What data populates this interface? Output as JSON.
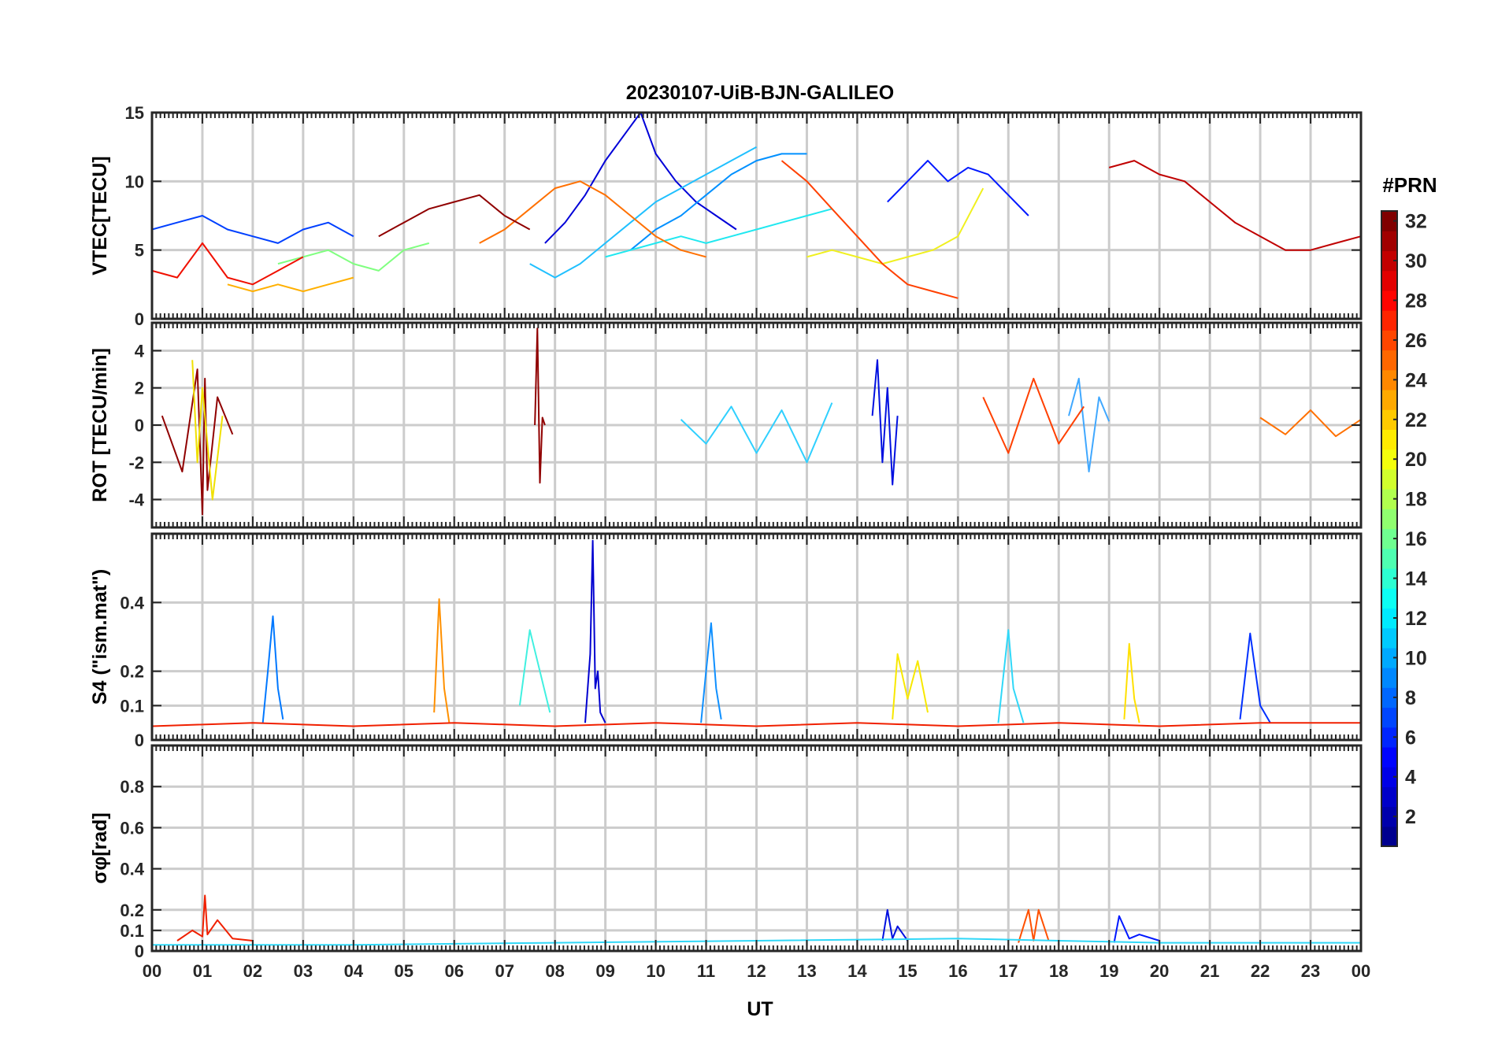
{
  "title": "20230107-UiB-BJN-GALILEO",
  "xlabel": "UT",
  "x_ticks": [
    "00",
    "01",
    "02",
    "03",
    "04",
    "05",
    "06",
    "07",
    "08",
    "09",
    "10",
    "11",
    "12",
    "13",
    "14",
    "15",
    "16",
    "17",
    "18",
    "19",
    "20",
    "21",
    "22",
    "23",
    "00"
  ],
  "colorbar": {
    "label": "#PRN",
    "range": [
      1,
      32
    ],
    "ticks": [
      "32",
      "30",
      "28",
      "26",
      "24",
      "22",
      "20",
      "18",
      "16",
      "14",
      "12",
      "10",
      "8",
      "6",
      "4",
      "2"
    ],
    "colormap": [
      "#00008f",
      "#0000ff",
      "#0080ff",
      "#00ffff",
      "#80ff80",
      "#ffff00",
      "#ff8000",
      "#ff0000",
      "#800000"
    ]
  },
  "chart_data": [
    {
      "type": "line",
      "panel": "vtec",
      "ylabel": "VTEC[TECU]",
      "ylim": [
        0,
        15
      ],
      "y_ticks": [
        "0",
        "5",
        "10",
        "15"
      ],
      "x_range_hours": [
        0,
        24
      ],
      "grid": true,
      "series": [
        {
          "prn": 2,
          "color": "#0000d8",
          "x": [
            7.8,
            8.2,
            8.6,
            9.0,
            9.4,
            9.7,
            10.0,
            10.4,
            10.8,
            11.2,
            11.6
          ],
          "y": [
            5.5,
            7.0,
            9.0,
            11.5,
            13.5,
            15.0,
            12.0,
            10.0,
            8.5,
            7.5,
            6.5
          ]
        },
        {
          "prn": 4,
          "color": "#0018ff",
          "x": [
            14.6,
            15.0,
            15.4,
            15.8,
            16.2,
            16.6,
            17.0,
            17.4
          ],
          "y": [
            8.5,
            10.0,
            11.5,
            10.0,
            11.0,
            10.5,
            9.0,
            7.5
          ]
        },
        {
          "prn": 6,
          "color": "#0040ff",
          "x": [
            0.0,
            0.5,
            1.0,
            1.5,
            2.0,
            2.5,
            3.0,
            3.5,
            4.0
          ],
          "y": [
            6.5,
            7.0,
            7.5,
            6.5,
            6.0,
            5.5,
            6.5,
            7.0,
            6.0
          ]
        },
        {
          "prn": 9,
          "color": "#0090ff",
          "x": [
            9.5,
            10.0,
            10.5,
            11.0,
            11.5,
            12.0,
            12.5,
            13.0
          ],
          "y": [
            5.0,
            6.5,
            7.5,
            9.0,
            10.5,
            11.5,
            12.0,
            12.0
          ]
        },
        {
          "prn": 11,
          "color": "#20c0ff",
          "x": [
            7.5,
            8.0,
            8.5,
            9.0,
            9.5,
            10.0,
            10.5,
            11.0,
            11.5,
            12.0
          ],
          "y": [
            4.0,
            3.0,
            4.0,
            5.5,
            7.0,
            8.5,
            9.5,
            10.5,
            11.5,
            12.5
          ]
        },
        {
          "prn": 13,
          "color": "#20e8f0",
          "x": [
            9.0,
            9.5,
            10.0,
            10.5,
            11.0,
            11.5,
            12.0,
            12.5,
            13.0,
            13.5
          ],
          "y": [
            4.5,
            5.0,
            5.5,
            6.0,
            5.5,
            6.0,
            6.5,
            7.0,
            7.5,
            8.0
          ]
        },
        {
          "prn": 16,
          "color": "#80ff80",
          "x": [
            2.5,
            3.0,
            3.5,
            4.0,
            4.5,
            5.0,
            5.5
          ],
          "y": [
            4.0,
            4.5,
            5.0,
            4.0,
            3.5,
            5.0,
            5.5
          ]
        },
        {
          "prn": 19,
          "color": "#f0f020",
          "x": [
            13.0,
            13.5,
            14.0,
            14.5,
            15.0,
            15.5,
            16.0,
            16.5
          ],
          "y": [
            4.5,
            5.0,
            4.5,
            4.0,
            4.5,
            5.0,
            6.0,
            9.5
          ]
        },
        {
          "prn": 22,
          "color": "#ffb000",
          "x": [
            1.5,
            2.0,
            2.5,
            3.0,
            3.5,
            4.0
          ],
          "y": [
            2.5,
            2.0,
            2.5,
            2.0,
            2.5,
            3.0
          ]
        },
        {
          "prn": 24,
          "color": "#ff7000",
          "x": [
            6.5,
            7.0,
            7.5,
            8.0,
            8.5,
            9.0,
            9.5,
            10.0,
            10.5,
            11.0
          ],
          "y": [
            5.5,
            6.5,
            8.0,
            9.5,
            10.0,
            9.0,
            7.5,
            6.0,
            5.0,
            4.5
          ]
        },
        {
          "prn": 26,
          "color": "#ff4000",
          "x": [
            12.5,
            13.0,
            13.5,
            14.0,
            14.5,
            15.0,
            15.5,
            16.0
          ],
          "y": [
            11.5,
            10.0,
            8.0,
            6.0,
            4.0,
            2.5,
            2.0,
            1.5
          ]
        },
        {
          "prn": 28,
          "color": "#f01000",
          "x": [
            0.0,
            0.5,
            1.0,
            1.5,
            2.0,
            2.5,
            3.0
          ],
          "y": [
            3.5,
            3.0,
            5.5,
            3.0,
            2.5,
            3.5,
            4.5
          ]
        },
        {
          "prn": 30,
          "color": "#c00000",
          "x": [
            19.0,
            19.5,
            20.0,
            20.5,
            21.0,
            21.5,
            22.0,
            22.5,
            23.0,
            23.5,
            24.0
          ],
          "y": [
            11.0,
            11.5,
            10.5,
            10.0,
            8.5,
            7.0,
            6.0,
            5.0,
            5.0,
            5.5,
            6.0
          ]
        },
        {
          "prn": 32,
          "color": "#900000",
          "x": [
            4.5,
            5.0,
            5.5,
            6.0,
            6.5,
            7.0,
            7.5
          ],
          "y": [
            6.0,
            7.0,
            8.0,
            8.5,
            9.0,
            7.5,
            6.5
          ]
        }
      ]
    },
    {
      "type": "line",
      "panel": "rot",
      "ylabel": "ROT [TECU/min]",
      "ylim": [
        -5.5,
        5.5
      ],
      "y_ticks": [
        "-4",
        "-2",
        "0",
        "2",
        "4"
      ],
      "x_range_hours": [
        0,
        24
      ],
      "grid": true,
      "series": [
        {
          "prn": 32,
          "color": "#900000",
          "x": [
            0.2,
            0.6,
            0.9,
            1.0,
            1.05,
            1.1,
            1.3,
            1.6
          ],
          "y": [
            0.5,
            -2.5,
            3.0,
            -4.8,
            2.5,
            -3.5,
            1.5,
            -0.5
          ]
        },
        {
          "prn": 32,
          "color": "#900000",
          "x": [
            7.6,
            7.65,
            7.7,
            7.75,
            7.8
          ],
          "y": [
            0,
            5.2,
            -3.1,
            0.4,
            0
          ]
        },
        {
          "prn": 20,
          "color": "#f0e000",
          "x": [
            0.8,
            0.9,
            1.0,
            1.2,
            1.4
          ],
          "y": [
            3.5,
            -2.0,
            2.0,
            -4.0,
            0.5
          ]
        },
        {
          "prn": 3,
          "color": "#0010e0",
          "x": [
            14.3,
            14.4,
            14.5,
            14.6,
            14.7,
            14.8
          ],
          "y": [
            0.5,
            3.5,
            -2.0,
            2.0,
            -3.2,
            0.5
          ]
        },
        {
          "prn": 10,
          "color": "#40a8ff",
          "x": [
            18.2,
            18.4,
            18.6,
            18.8,
            19.0
          ],
          "y": [
            0.5,
            2.5,
            -2.5,
            1.5,
            0.2
          ]
        },
        {
          "prn": 12,
          "color": "#30d0ff",
          "x": [
            10.5,
            11.0,
            11.5,
            12.0,
            12.5,
            13.0,
            13.5
          ],
          "y": [
            0.3,
            -1.0,
            1.0,
            -1.5,
            0.8,
            -2.0,
            1.2
          ]
        },
        {
          "prn": 26,
          "color": "#ff4000",
          "x": [
            16.5,
            17.0,
            17.5,
            18.0,
            18.5
          ],
          "y": [
            1.5,
            -1.5,
            2.5,
            -1.0,
            1.0
          ]
        },
        {
          "prn": 24,
          "color": "#ff7000",
          "x": [
            22.0,
            22.5,
            23.0,
            23.5,
            24.0
          ],
          "y": [
            0.4,
            -0.5,
            0.8,
            -0.6,
            0.3
          ]
        }
      ]
    },
    {
      "type": "line",
      "panel": "s4",
      "ylabel": "S4 (\"ism.mat\")",
      "ylim": [
        0,
        0.6
      ],
      "y_ticks": [
        "0",
        "0.1",
        "0.2",
        "0.4"
      ],
      "x_range_hours": [
        0,
        24
      ],
      "grid": true,
      "series": [
        {
          "prn": 2,
          "color": "#0000d0",
          "x": [
            8.6,
            8.7,
            8.75,
            8.8,
            8.85,
            8.9,
            9.0
          ],
          "y": [
            0.05,
            0.25,
            0.58,
            0.15,
            0.2,
            0.08,
            0.05
          ]
        },
        {
          "prn": 8,
          "color": "#0078ff",
          "x": [
            2.2,
            2.3,
            2.4,
            2.5,
            2.6
          ],
          "y": [
            0.05,
            0.2,
            0.36,
            0.15,
            0.06
          ]
        },
        {
          "prn": 22,
          "color": "#ff9000",
          "x": [
            5.6,
            5.7,
            5.8,
            5.9
          ],
          "y": [
            0.08,
            0.41,
            0.15,
            0.05
          ]
        },
        {
          "prn": 13,
          "color": "#40f0e0",
          "x": [
            7.3,
            7.5,
            7.7,
            7.9
          ],
          "y": [
            0.1,
            0.32,
            0.2,
            0.08
          ]
        },
        {
          "prn": 9,
          "color": "#1090ff",
          "x": [
            10.9,
            11.0,
            11.1,
            11.2,
            11.3
          ],
          "y": [
            0.05,
            0.2,
            0.34,
            0.15,
            0.06
          ]
        },
        {
          "prn": 20,
          "color": "#f8e800",
          "x": [
            14.7,
            14.8,
            15.0,
            15.2,
            15.4
          ],
          "y": [
            0.06,
            0.25,
            0.12,
            0.23,
            0.08
          ]
        },
        {
          "prn": 12,
          "color": "#30d8f8",
          "x": [
            16.8,
            17.0,
            17.1,
            17.3
          ],
          "y": [
            0.05,
            0.32,
            0.15,
            0.05
          ]
        },
        {
          "prn": 19,
          "color": "#ffe000",
          "x": [
            19.3,
            19.4,
            19.5,
            19.6
          ],
          "y": [
            0.06,
            0.28,
            0.12,
            0.05
          ]
        },
        {
          "prn": 5,
          "color": "#0030ff",
          "x": [
            21.6,
            21.8,
            22.0,
            22.2
          ],
          "y": [
            0.06,
            0.31,
            0.1,
            0.05
          ]
        },
        {
          "prn": 28,
          "color": "#f02000",
          "x": [
            0,
            2,
            4,
            6,
            8,
            10,
            12,
            14,
            16,
            18,
            20,
            22,
            24
          ],
          "y": [
            0.04,
            0.05,
            0.04,
            0.05,
            0.04,
            0.05,
            0.04,
            0.05,
            0.04,
            0.05,
            0.04,
            0.05,
            0.05
          ]
        }
      ]
    },
    {
      "type": "line",
      "panel": "sigma_phi",
      "ylabel": "σφ[rad]",
      "ylim": [
        0,
        1.0
      ],
      "y_ticks": [
        "0",
        "0.1",
        "0.2",
        "0.4",
        "0.6",
        "0.8"
      ],
      "x_range_hours": [
        0,
        24
      ],
      "grid": true,
      "series": [
        {
          "prn": 28,
          "color": "#f02000",
          "x": [
            0.5,
            0.8,
            1.0,
            1.05,
            1.1,
            1.3,
            1.6,
            2.0
          ],
          "y": [
            0.05,
            0.1,
            0.07,
            0.27,
            0.08,
            0.15,
            0.06,
            0.05
          ]
        },
        {
          "prn": 3,
          "color": "#0010e0",
          "x": [
            14.5,
            14.6,
            14.7,
            14.8,
            15.0
          ],
          "y": [
            0.05,
            0.2,
            0.06,
            0.12,
            0.05
          ]
        },
        {
          "prn": 25,
          "color": "#ff5000",
          "x": [
            17.2,
            17.4,
            17.5,
            17.6,
            17.8
          ],
          "y": [
            0.04,
            0.2,
            0.05,
            0.2,
            0.05
          ]
        },
        {
          "prn": 4,
          "color": "#0018ff",
          "x": [
            19.1,
            19.2,
            19.4,
            19.6,
            20.0
          ],
          "y": [
            0.04,
            0.17,
            0.06,
            0.08,
            0.05
          ]
        },
        {
          "prn": 12,
          "color": "#30d8f8",
          "x": [
            0,
            4,
            8,
            12,
            16,
            20,
            24
          ],
          "y": [
            0.03,
            0.03,
            0.04,
            0.05,
            0.06,
            0.04,
            0.04
          ]
        }
      ]
    }
  ]
}
